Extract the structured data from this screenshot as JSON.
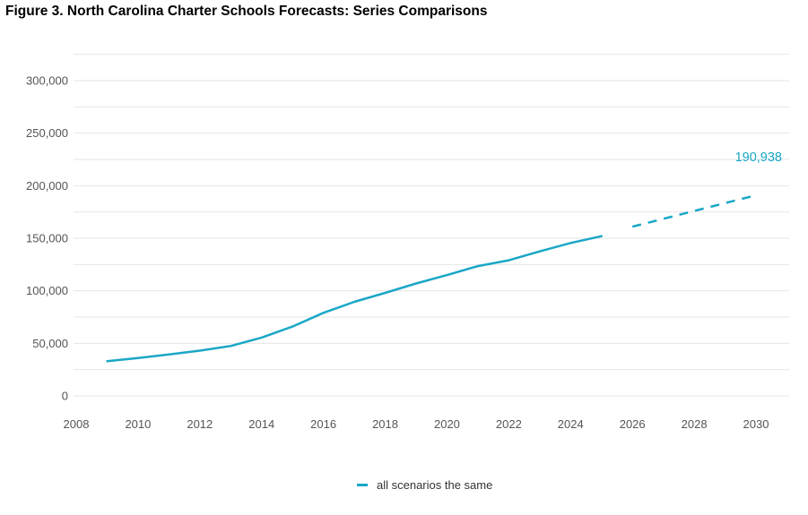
{
  "title": "Figure 3. North Carolina Charter Schools Forecasts: Series Comparisons",
  "colors": {
    "series": "#1aa7c7",
    "grid": "#e6e6e6",
    "tick": "#555555"
  },
  "chart_data": {
    "type": "line",
    "title": "Figure 3. North Carolina Charter Schools Forecasts: Series Comparisons",
    "xlabel": "",
    "ylabel": "",
    "xlim": [
      2008,
      2030
    ],
    "ylim": [
      0,
      300000
    ],
    "x_ticks": [
      2008,
      2010,
      2012,
      2014,
      2016,
      2018,
      2020,
      2022,
      2024,
      2026,
      2028,
      2030
    ],
    "x_tick_labels": [
      "2008",
      "2010",
      "2012",
      "2014",
      "2016",
      "2018",
      "2020",
      "2022",
      "2024",
      "2026",
      "2028",
      "2030"
    ],
    "y_ticks": [
      0,
      50000,
      100000,
      150000,
      200000,
      250000,
      300000
    ],
    "y_tick_labels": [
      "0",
      "50,000",
      "100,000",
      "150,000",
      "200,000",
      "250,000",
      "300,000"
    ],
    "grid": true,
    "legend_position": "bottom-center",
    "series": [
      {
        "name": "all scenarios the same",
        "color": "#1aa7c7",
        "actual": {
          "x": [
            2009,
            2010,
            2011,
            2012,
            2013,
            2014,
            2015,
            2016,
            2017,
            2018,
            2019,
            2020,
            2021,
            2022,
            2023,
            2024,
            2025
          ],
          "y": [
            33000,
            36000,
            39500,
            43000,
            47500,
            55500,
            66000,
            79000,
            89500,
            98000,
            107000,
            115000,
            123500,
            129000,
            137500,
            145500,
            152000
          ]
        },
        "forecast": {
          "x": [
            2026,
            2030
          ],
          "y": [
            161000,
            190938
          ]
        }
      }
    ],
    "annotations": [
      {
        "text": "190,938",
        "x": 2030,
        "y": 190938
      }
    ]
  }
}
